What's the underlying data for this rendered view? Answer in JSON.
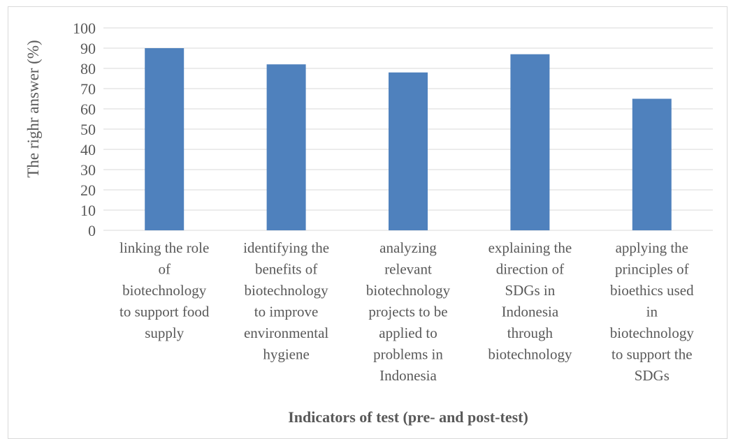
{
  "chart_data": {
    "type": "bar",
    "categories": [
      "linking the role of biotechnology to support food supply",
      "identifying the benefits of biotechnology to improve environmental hygiene",
      "analyzing relevant biotechnology projects to be applied to problems in Indonesia",
      "explaining the direction of SDGs in Indonesia through biotechnology",
      "applying the principles of bioethics used in biotechnology to support the SDGs"
    ],
    "category_lines": [
      [
        "linking the role",
        "of",
        "biotechnology",
        "to support food",
        "supply"
      ],
      [
        "identifying the",
        "benefits of",
        "biotechnology",
        "to improve",
        "environmental",
        "hygiene"
      ],
      [
        "analyzing",
        "relevant",
        "biotechnology",
        "projects to be",
        "applied to",
        "problems in",
        "Indonesia"
      ],
      [
        "explaining the",
        "direction of",
        "SDGs in",
        "Indonesia",
        "through",
        "biotechnology"
      ],
      [
        "applying the",
        "principles of",
        "bioethics used",
        "in",
        "biotechnology",
        "to support the",
        "SDGs"
      ]
    ],
    "values": [
      90,
      82,
      78,
      87,
      65
    ],
    "xlabel": "Indicators of test (pre- and post-test)",
    "ylabel": "The righr answer (%)",
    "ylim": [
      0,
      100
    ],
    "yticks": [
      0,
      10,
      20,
      30,
      40,
      50,
      60,
      70,
      80,
      90,
      100
    ],
    "grid": true,
    "bar_color": "#4f81bd",
    "grid_color": "#d9d9d9"
  }
}
